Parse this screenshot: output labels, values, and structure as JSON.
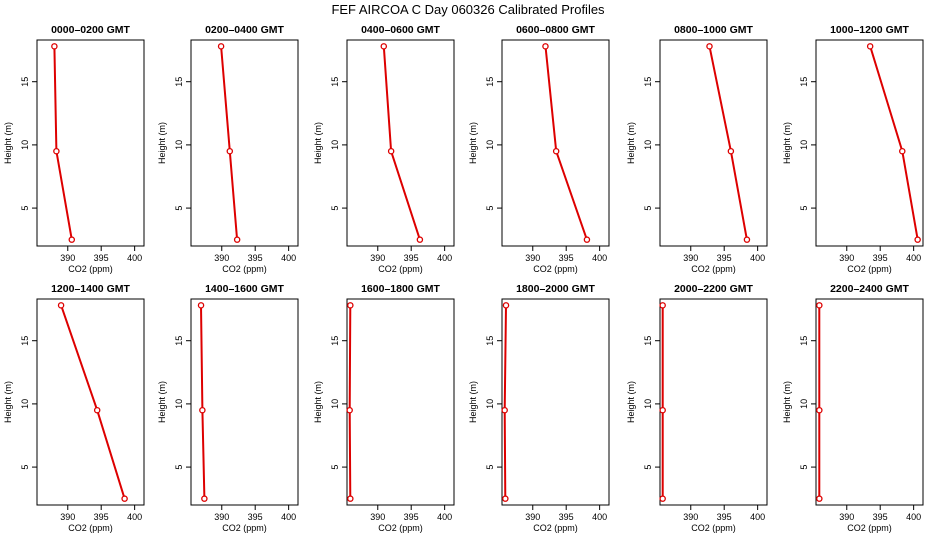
{
  "title": "FEF AIRCOA C  Day 060326  Calibrated Profiles",
  "colors": {
    "series": "#dd0000",
    "axis": "#000000",
    "background": "#ffffff"
  },
  "chart_data": [
    {
      "type": "line",
      "title": "0000–0200 GMT",
      "xlabel": "CO2 (ppm)",
      "ylabel": "Height (m)",
      "xlim": [
        385.4,
        401.4
      ],
      "ylim": [
        2.0,
        18.3
      ],
      "xticks": [
        390,
        395,
        400
      ],
      "yticks": [
        5,
        10,
        15
      ],
      "x": [
        390.6,
        388.3,
        388.0
      ],
      "y": [
        2.5,
        9.5,
        17.8
      ]
    },
    {
      "type": "line",
      "title": "0200–0400 GMT",
      "xlabel": "CO2 (ppm)",
      "ylabel": "Height (m)",
      "xlim": [
        385.4,
        401.4
      ],
      "ylim": [
        2.0,
        18.3
      ],
      "xticks": [
        390,
        395,
        400
      ],
      "yticks": [
        5,
        10,
        15
      ],
      "x": [
        392.3,
        391.2,
        389.9
      ],
      "y": [
        2.5,
        9.5,
        17.8
      ]
    },
    {
      "type": "line",
      "title": "0400–0600 GMT",
      "xlabel": "CO2 (ppm)",
      "ylabel": "Height (m)",
      "xlim": [
        385.4,
        401.4
      ],
      "ylim": [
        2.0,
        18.3
      ],
      "xticks": [
        390,
        395,
        400
      ],
      "yticks": [
        5,
        10,
        15
      ],
      "x": [
        396.3,
        392.0,
        390.9
      ],
      "y": [
        2.5,
        9.5,
        17.8
      ]
    },
    {
      "type": "line",
      "title": "0600–0800 GMT",
      "xlabel": "CO2 (ppm)",
      "ylabel": "Height (m)",
      "xlim": [
        385.4,
        401.4
      ],
      "ylim": [
        2.0,
        18.3
      ],
      "xticks": [
        390,
        395,
        400
      ],
      "yticks": [
        5,
        10,
        15
      ],
      "x": [
        398.1,
        393.5,
        391.9
      ],
      "y": [
        2.5,
        9.5,
        17.8
      ]
    },
    {
      "type": "line",
      "title": "0800–1000 GMT",
      "xlabel": "CO2 (ppm)",
      "ylabel": "Height (m)",
      "xlim": [
        385.4,
        401.4
      ],
      "ylim": [
        2.0,
        18.3
      ],
      "xticks": [
        390,
        395,
        400
      ],
      "yticks": [
        5,
        10,
        15
      ],
      "x": [
        398.4,
        396.0,
        392.8
      ],
      "y": [
        2.5,
        9.5,
        17.8
      ]
    },
    {
      "type": "line",
      "title": "1000–1200 GMT",
      "xlabel": "CO2 (ppm)",
      "ylabel": "Height (m)",
      "xlim": [
        385.4,
        401.4
      ],
      "ylim": [
        2.0,
        18.3
      ],
      "xticks": [
        390,
        395,
        400
      ],
      "yticks": [
        5,
        10,
        15
      ],
      "x": [
        400.6,
        398.3,
        393.5
      ],
      "y": [
        2.5,
        9.5,
        17.8
      ]
    },
    {
      "type": "line",
      "title": "1200–1400 GMT",
      "xlabel": "CO2 (ppm)",
      "ylabel": "Height (m)",
      "xlim": [
        385.4,
        401.4
      ],
      "ylim": [
        2.0,
        18.3
      ],
      "xticks": [
        390,
        395,
        400
      ],
      "yticks": [
        5,
        10,
        15
      ],
      "x": [
        398.5,
        394.4,
        389.0
      ],
      "y": [
        2.5,
        9.5,
        17.8
      ]
    },
    {
      "type": "line",
      "title": "1400–1600 GMT",
      "xlabel": "CO2 (ppm)",
      "ylabel": "Height (m)",
      "xlim": [
        385.4,
        401.4
      ],
      "ylim": [
        2.0,
        18.3
      ],
      "xticks": [
        390,
        395,
        400
      ],
      "yticks": [
        5,
        10,
        15
      ],
      "x": [
        387.4,
        387.1,
        386.9
      ],
      "y": [
        2.5,
        9.5,
        17.8
      ]
    },
    {
      "type": "line",
      "title": "1600–1800 GMT",
      "xlabel": "CO2 (ppm)",
      "ylabel": "Height (m)",
      "xlim": [
        385.4,
        401.4
      ],
      "ylim": [
        2.0,
        18.3
      ],
      "xticks": [
        390,
        395,
        400
      ],
      "yticks": [
        5,
        10,
        15
      ],
      "x": [
        385.9,
        385.8,
        385.9
      ],
      "y": [
        2.5,
        9.5,
        17.8
      ]
    },
    {
      "type": "line",
      "title": "1800–2000 GMT",
      "xlabel": "CO2 (ppm)",
      "ylabel": "Height (m)",
      "xlim": [
        385.4,
        401.4
      ],
      "ylim": [
        2.0,
        18.3
      ],
      "xticks": [
        390,
        395,
        400
      ],
      "yticks": [
        5,
        10,
        15
      ],
      "x": [
        385.9,
        385.8,
        386.0
      ],
      "y": [
        2.5,
        9.5,
        17.8
      ]
    },
    {
      "type": "line",
      "title": "2000–2200 GMT",
      "xlabel": "CO2 (ppm)",
      "ylabel": "Height (m)",
      "xlim": [
        385.4,
        401.4
      ],
      "ylim": [
        2.0,
        18.3
      ],
      "xticks": [
        390,
        395,
        400
      ],
      "yticks": [
        5,
        10,
        15
      ],
      "x": [
        385.8,
        385.8,
        385.8
      ],
      "y": [
        2.5,
        9.5,
        17.8
      ]
    },
    {
      "type": "line",
      "title": "2200–2400 GMT",
      "xlabel": "CO2 (ppm)",
      "ylabel": "Height (m)",
      "xlim": [
        385.4,
        401.4
      ],
      "ylim": [
        2.0,
        18.3
      ],
      "xticks": [
        390,
        395,
        400
      ],
      "yticks": [
        5,
        10,
        15
      ],
      "x": [
        385.9,
        385.9,
        385.9
      ],
      "y": [
        2.5,
        9.5,
        17.8
      ]
    }
  ]
}
